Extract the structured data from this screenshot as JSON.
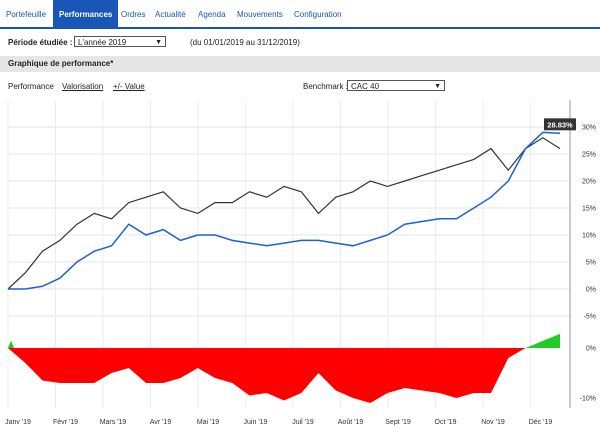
{
  "tabs": [
    "Portefeuille",
    "Performances",
    "Ordres",
    "Actualité",
    "Agenda",
    "Mouvements",
    "Configuration"
  ],
  "active_tab": "Performances",
  "period": {
    "label": "Période étudiée :",
    "selected": "L'année 2019",
    "range_text": "(du 01/01/2019 au 31/12/2019)"
  },
  "section_title": "Graphique de performance*",
  "chart_tabs": {
    "performance": "Performance",
    "valorisation": "Valorisation",
    "plus_minus": "+/- Value"
  },
  "benchmark": {
    "label": "Benchmark :",
    "selected": "CAC 40"
  },
  "colors": {
    "accent": "#1a56b8",
    "portfolio": "#1f5fd6",
    "benchmark": "#333333",
    "negative": "#ff0000",
    "positive": "#22cc22",
    "tooltip_bg": "#333333"
  },
  "chart_data": {
    "type": "line",
    "title": "",
    "xlabel": "",
    "ylabel": "",
    "x_ticks": [
      "Janv '19",
      "Févr '19",
      "Mars '19",
      "Avr '19",
      "Mai '19",
      "Juin '19",
      "Juil '19",
      "Août '19",
      "Sept '19",
      "Oct '19",
      "Nov '19",
      "Déc '19"
    ],
    "y_ticks": [
      "30%",
      "25%",
      "20%",
      "15%",
      "10%",
      "5%",
      "0%",
      "-5%"
    ],
    "ylim": [
      -5,
      35
    ],
    "grid": true,
    "tooltip": "28.83%",
    "series": [
      {
        "name": "portfolio",
        "values": [
          0,
          0,
          0.5,
          2,
          5,
          7,
          8,
          12,
          10,
          11,
          9,
          10,
          10,
          9,
          8.5,
          8,
          8.5,
          9,
          9,
          8.5,
          8,
          9,
          10,
          12,
          12.5,
          13,
          13,
          15,
          17,
          20,
          26,
          29,
          28.83
        ]
      },
      {
        "name": "benchmark",
        "values": [
          0,
          3,
          7,
          9,
          12,
          14,
          13,
          16,
          17,
          18,
          15,
          14,
          16,
          16,
          18,
          17,
          19,
          18,
          14,
          17,
          18,
          20,
          19,
          20,
          21,
          22,
          23,
          24,
          26,
          22,
          26,
          28,
          26
        ]
      }
    ],
    "difference": {
      "y_ticks": [
        "0%",
        "-10%"
      ],
      "ylim": [
        -12,
        2
      ],
      "values": [
        0,
        -3,
        -6.5,
        -7,
        -7,
        -7,
        -5,
        -4,
        -7,
        -7,
        -6,
        -4,
        -6,
        -7,
        -9.5,
        -9,
        -10.5,
        -9,
        -5,
        -8.5,
        -10,
        -11,
        -9,
        -8,
        -8.5,
        -9,
        -10,
        -9,
        -9,
        -2,
        0,
        1,
        2.83
      ]
    }
  }
}
